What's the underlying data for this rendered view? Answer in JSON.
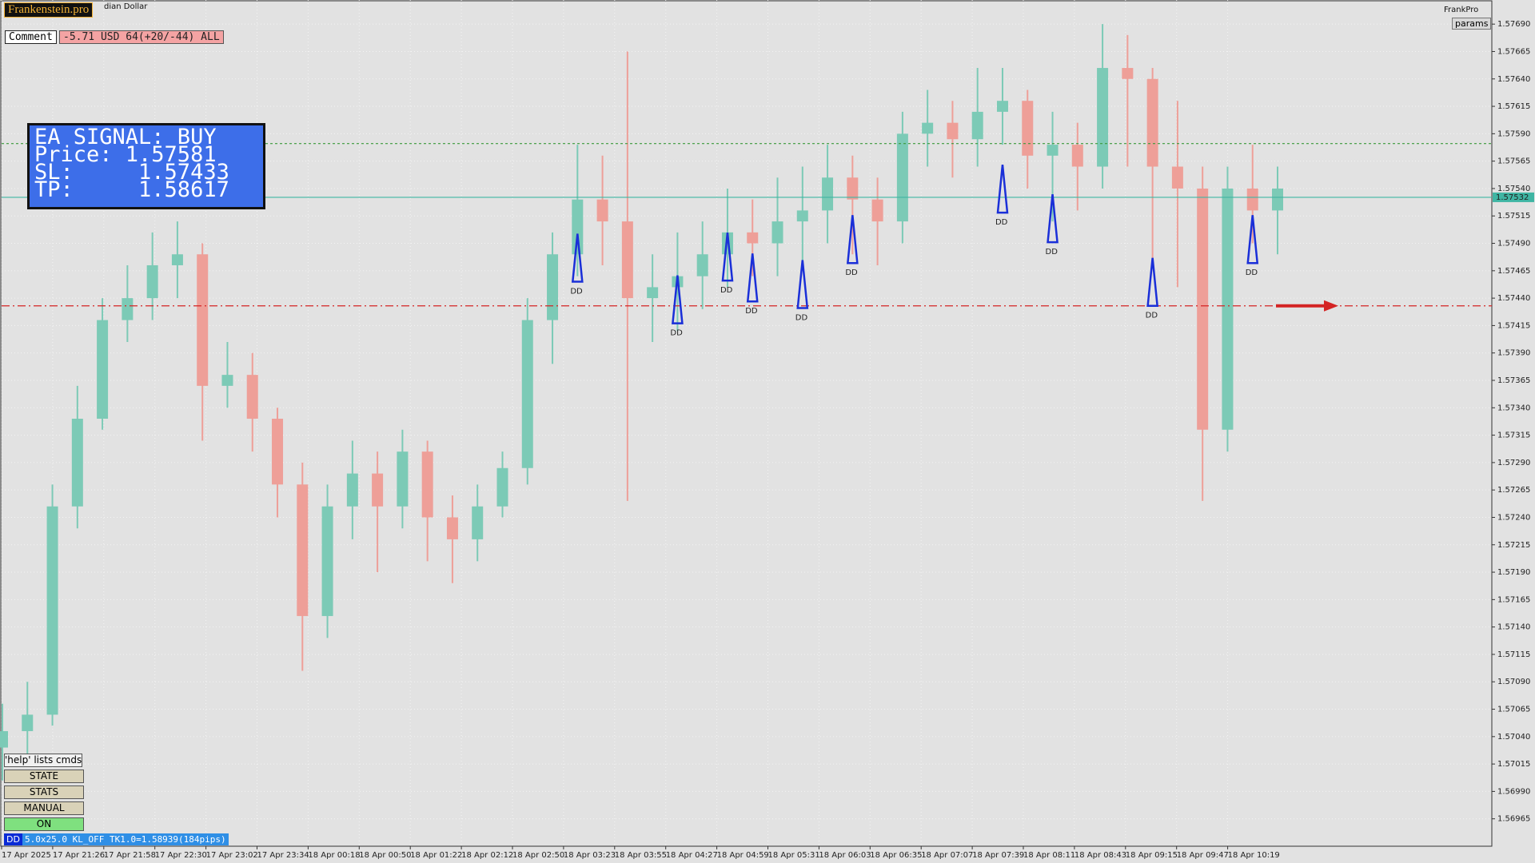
{
  "header": {
    "brand": "Frankenstein.pro",
    "symbol": "dian Dollar",
    "comment_label": "Comment",
    "comment_value": "-5.71 USD 64(+20/-44) ALL",
    "brand_right": "FrankPro",
    "params": "params"
  },
  "signal": {
    "title": "EA SIGNAL: BUY",
    "lines": [
      "Price: 1.57581",
      "SL:     1.57433",
      "TP:     1.58617"
    ]
  },
  "buttons": {
    "help": "'help' lists cmds",
    "state": "STATE",
    "stats": "STATS",
    "manual": "MANUAL",
    "on": "ON"
  },
  "status": {
    "tag": "DD",
    "text": "5.0x25.0 KL_OFF TK1.0=1.58939(184pips)"
  },
  "chart_data": {
    "type": "candlestick",
    "categories": [
      "17 Apr 2025",
      "17 Apr 21:26",
      "17 Apr 21:58",
      "17 Apr 22:30",
      "17 Apr 23:02",
      "17 Apr 23:34",
      "18 Apr 00:18",
      "18 Apr 00:50",
      "18 Apr 01:22",
      "18 Apr 02:12",
      "18 Apr 02:50",
      "18 Apr 03:23",
      "18 Apr 03:55",
      "18 Apr 04:27",
      "18 Apr 04:59",
      "18 Apr 05:31",
      "18 Apr 06:03",
      "18 Apr 06:35",
      "18 Apr 07:07",
      "18 Apr 07:39",
      "18 Apr 08:11",
      "18 Apr 08:43",
      "18 Apr 09:15",
      "18 Apr 09:47",
      "18 Apr 10:19"
    ],
    "open": [
      1.5703,
      1.57045,
      1.5706,
      1.5725,
      1.5733,
      1.5742,
      1.5744,
      1.5747,
      1.5748,
      1.5736,
      1.5737,
      1.5733,
      1.5727,
      1.5715,
      1.5725,
      1.5728,
      1.5725,
      1.573,
      1.5724,
      1.5722,
      1.5725,
      1.57285,
      1.5742,
      1.5748,
      1.5753,
      1.5751,
      1.5744,
      1.5745,
      1.5746,
      1.5748,
      1.575,
      1.5749,
      1.5751,
      1.5752,
      1.5755,
      1.5753,
      1.5751,
      1.5759,
      1.576,
      1.57585,
      1.5761,
      1.5762,
      1.5757,
      1.5758,
      1.5756,
      1.5765,
      1.5764,
      1.5756,
      1.5754,
      1.5732,
      1.5754,
      1.5752
    ],
    "high": [
      1.5707,
      1.5709,
      1.5727,
      1.5736,
      1.5744,
      1.5747,
      1.575,
      1.5751,
      1.5749,
      1.574,
      1.5739,
      1.5734,
      1.5729,
      1.5727,
      1.5731,
      1.573,
      1.5732,
      1.5731,
      1.5726,
      1.5727,
      1.573,
      1.5744,
      1.575,
      1.5758,
      1.5757,
      1.57665,
      1.5748,
      1.575,
      1.5751,
      1.5754,
      1.5753,
      1.5755,
      1.5756,
      1.5758,
      1.5757,
      1.5755,
      1.5761,
      1.5763,
      1.5762,
      1.5765,
      1.5765,
      1.5763,
      1.5761,
      1.576,
      1.5769,
      1.5768,
      1.5765,
      1.5762,
      1.5756,
      1.5756,
      1.5758,
      1.5756
    ],
    "low": [
      1.57,
      1.5702,
      1.5705,
      1.5723,
      1.5732,
      1.574,
      1.5742,
      1.5744,
      1.5731,
      1.5734,
      1.573,
      1.5724,
      1.571,
      1.5713,
      1.5722,
      1.5719,
      1.5723,
      1.572,
      1.5718,
      1.572,
      1.5724,
      1.5727,
      1.5738,
      1.5746,
      1.5747,
      1.57255,
      1.574,
      1.5741,
      1.5743,
      1.5745,
      1.5746,
      1.5746,
      1.5747,
      1.5749,
      1.5748,
      1.5747,
      1.5749,
      1.5756,
      1.5755,
      1.5756,
      1.5758,
      1.5754,
      1.5751,
      1.5752,
      1.5754,
      1.5756,
      1.5747,
      1.5745,
      1.57255,
      1.573,
      1.5749,
      1.5748
    ],
    "close": [
      1.57045,
      1.5706,
      1.5725,
      1.5733,
      1.5742,
      1.5744,
      1.5747,
      1.5748,
      1.5736,
      1.5737,
      1.5733,
      1.5727,
      1.5715,
      1.5725,
      1.5728,
      1.5725,
      1.573,
      1.5724,
      1.5722,
      1.5725,
      1.57285,
      1.5742,
      1.5748,
      1.5753,
      1.5751,
      1.5744,
      1.5745,
      1.5746,
      1.5748,
      1.575,
      1.5749,
      1.5751,
      1.5752,
      1.5755,
      1.5753,
      1.5751,
      1.5759,
      1.576,
      1.57585,
      1.5761,
      1.5762,
      1.5757,
      1.5758,
      1.5756,
      1.5765,
      1.5764,
      1.5756,
      1.5754,
      1.5732,
      1.5754,
      1.5752,
      1.5754
    ],
    "up_color": "#7ccab6",
    "down_color": "#ee9f98",
    "ylim": [
      1.5694,
      1.57712
    ],
    "yticks": [
      {
        "value": 1.5769,
        "label": "1.57690"
      },
      {
        "value": 1.57665,
        "label": "1.57665"
      },
      {
        "value": 1.5764,
        "label": "1.57640"
      },
      {
        "value": 1.57615,
        "label": "1.57615"
      },
      {
        "value": 1.5759,
        "label": "1.57590"
      },
      {
        "value": 1.57565,
        "label": "1.57565"
      },
      {
        "value": 1.5754,
        "label": "1.57540"
      },
      {
        "value": 1.57515,
        "label": "1.57515"
      },
      {
        "value": 1.5749,
        "label": "1.57490"
      },
      {
        "value": 1.57465,
        "label": "1.57465"
      },
      {
        "value": 1.5744,
        "label": "1.57440"
      },
      {
        "value": 1.57415,
        "label": "1.57415"
      },
      {
        "value": 1.5739,
        "label": "1.57390"
      },
      {
        "value": 1.57365,
        "label": "1.57365"
      },
      {
        "value": 1.5734,
        "label": "1.57340"
      },
      {
        "value": 1.57315,
        "label": "1.57315"
      },
      {
        "value": 1.5729,
        "label": "1.57290"
      },
      {
        "value": 1.57265,
        "label": "1.57265"
      },
      {
        "value": 1.5724,
        "label": "1.57240"
      },
      {
        "value": 1.57215,
        "label": "1.57215"
      },
      {
        "value": 1.5719,
        "label": "1.57190"
      },
      {
        "value": 1.57165,
        "label": "1.57165"
      },
      {
        "value": 1.5714,
        "label": "1.57140"
      },
      {
        "value": 1.57115,
        "label": "1.57115"
      },
      {
        "value": 1.5709,
        "label": "1.57090"
      },
      {
        "value": 1.57065,
        "label": "1.57065"
      },
      {
        "value": 1.5704,
        "label": "1.57040"
      },
      {
        "value": 1.57015,
        "label": "1.57015"
      },
      {
        "value": 1.5699,
        "label": "1.56990"
      },
      {
        "value": 1.56965,
        "label": "1.56965"
      }
    ],
    "grid": true,
    "levels": [
      {
        "price": 1.57581,
        "color": "#3a9a3a",
        "style": "dotted"
      },
      {
        "price": 1.57532,
        "color": "#3fb5a3",
        "style": "solid",
        "label": "1.57532"
      },
      {
        "price": 1.57433,
        "color": "#d42424",
        "style": "dashdot"
      }
    ],
    "annotations": [
      {
        "text": "DD",
        "candle": 23,
        "price": 1.57455
      },
      {
        "text": "DD",
        "candle": 27,
        "price": 1.57417
      },
      {
        "text": "DD",
        "candle": 29,
        "price": 1.57456
      },
      {
        "text": "DD",
        "candle": 30,
        "price": 1.57437
      },
      {
        "text": "DD",
        "candle": 32,
        "price": 1.57431
      },
      {
        "text": "DD",
        "candle": 34,
        "price": 1.57472
      },
      {
        "text": "DD",
        "candle": 40,
        "price": 1.57518
      },
      {
        "text": "DD",
        "candle": 42,
        "price": 1.57491
      },
      {
        "text": "DD",
        "candle": 46,
        "price": 1.57433
      },
      {
        "text": "DD",
        "candle": 50,
        "price": 1.57472
      }
    ],
    "annotation_color": "#1a2fd8"
  }
}
